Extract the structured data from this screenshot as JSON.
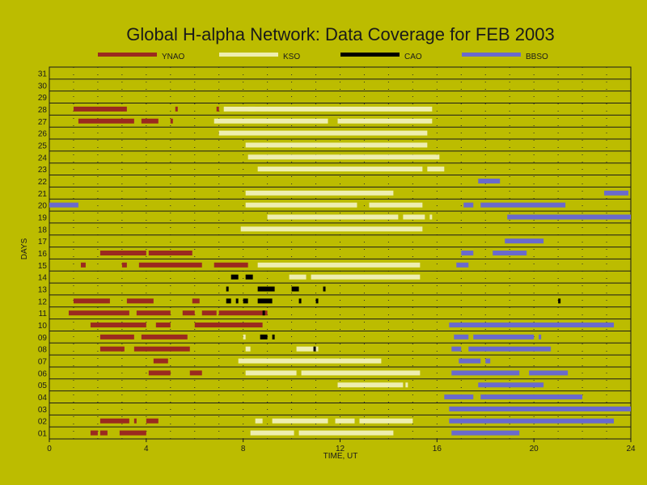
{
  "chart_data": {
    "type": "timeline",
    "title": "Global H-alpha Network: Data Coverage for FEB 2003",
    "xlabel": "TIME, UT",
    "ylabel": "DAYS",
    "xlim": [
      0,
      24
    ],
    "x_ticks": [
      0,
      4,
      8,
      12,
      16,
      20,
      24
    ],
    "days": [
      "01",
      "02",
      "03",
      "04",
      "05",
      "06",
      "07",
      "08",
      "09",
      "10",
      "11",
      "12",
      "13",
      "14",
      "15",
      "16",
      "17",
      "18",
      "19",
      "20",
      "21",
      "22",
      "23",
      "24",
      "25",
      "26",
      "27",
      "28",
      "29",
      "30",
      "31"
    ],
    "grid": "dotted vertical every 1 hour",
    "colors": {
      "background": "#bcbc00",
      "YNAO": "#9b2a1f",
      "KSO": "#eeeeb0",
      "CAO": "#000000",
      "BBSO": "#6a6acc"
    },
    "series": [
      {
        "name": "YNAO",
        "intervals": [
          [
            1,
            1.7,
            2.0
          ],
          [
            1,
            2.1,
            2.4
          ],
          [
            1,
            2.9,
            4.0
          ],
          [
            2,
            2.1,
            3.3
          ],
          [
            2,
            3.5,
            3.6
          ],
          [
            2,
            4.0,
            4.5
          ],
          [
            6,
            4.1,
            5.0
          ],
          [
            6,
            5.8,
            6.3
          ],
          [
            7,
            4.3,
            4.9
          ],
          [
            8,
            2.1,
            3.1
          ],
          [
            8,
            3.5,
            5.8
          ],
          [
            9,
            2.1,
            3.5
          ],
          [
            9,
            3.8,
            5.7
          ],
          [
            10,
            1.7,
            4.0
          ],
          [
            10,
            4.4,
            5.0
          ],
          [
            10,
            6.0,
            8.8
          ],
          [
            11,
            0.8,
            3.3
          ],
          [
            11,
            3.6,
            5.0
          ],
          [
            11,
            5.5,
            6.0
          ],
          [
            11,
            6.3,
            6.9
          ],
          [
            11,
            7.0,
            9.0
          ],
          [
            12,
            1.0,
            2.5
          ],
          [
            12,
            3.2,
            4.3
          ],
          [
            12,
            5.9,
            6.2
          ],
          [
            15,
            1.3,
            1.5
          ],
          [
            15,
            3.0,
            3.2
          ],
          [
            15,
            3.7,
            6.3
          ],
          [
            15,
            6.8,
            8.2
          ],
          [
            16,
            2.1,
            4.0
          ],
          [
            16,
            4.1,
            5.9
          ],
          [
            27,
            1.2,
            3.5
          ],
          [
            27,
            3.8,
            4.5
          ],
          [
            27,
            5.0,
            5.1
          ],
          [
            28,
            1.0,
            3.2
          ],
          [
            28,
            5.2,
            5.3
          ],
          [
            28,
            6.9,
            7.0
          ],
          [
            28,
            7.3,
            8.2
          ],
          [
            28,
            8.5,
            8.7
          ]
        ]
      },
      {
        "name": "KSO",
        "intervals": [
          [
            1,
            8.3,
            10.1
          ],
          [
            1,
            10.3,
            14.2
          ],
          [
            2,
            8.5,
            8.8
          ],
          [
            2,
            9.2,
            11.5
          ],
          [
            2,
            11.8,
            12.6
          ],
          [
            2,
            12.8,
            15.0
          ],
          [
            5,
            11.9,
            14.6
          ],
          [
            5,
            14.7,
            14.8
          ],
          [
            6,
            8.1,
            10.2
          ],
          [
            6,
            10.4,
            15.3
          ],
          [
            7,
            7.8,
            13.7
          ],
          [
            8,
            8.1,
            8.3
          ],
          [
            8,
            10.2,
            11.1
          ],
          [
            9,
            8.0,
            8.1
          ],
          [
            14,
            9.9,
            10.6
          ],
          [
            14,
            10.8,
            15.3
          ],
          [
            15,
            8.6,
            15.3
          ],
          [
            18,
            7.9,
            15.4
          ],
          [
            19,
            9.0,
            14.4
          ],
          [
            19,
            14.6,
            15.5
          ],
          [
            19,
            15.7,
            15.8
          ],
          [
            20,
            8.1,
            12.7
          ],
          [
            20,
            13.2,
            15.4
          ],
          [
            21,
            8.1,
            14.2
          ],
          [
            23,
            8.6,
            15.4
          ],
          [
            23,
            15.6,
            16.3
          ],
          [
            24,
            8.2,
            16.1
          ],
          [
            25,
            8.1,
            15.6
          ],
          [
            26,
            7.0,
            15.6
          ],
          [
            27,
            6.8,
            11.5
          ],
          [
            27,
            11.9,
            15.8
          ],
          [
            28,
            7.2,
            15.8
          ]
        ]
      },
      {
        "name": "CAO",
        "intervals": [
          [
            8,
            10.9,
            11.0
          ],
          [
            9,
            8.7,
            9.0
          ],
          [
            9,
            9.2,
            9.3
          ],
          [
            11,
            8.8,
            8.9
          ],
          [
            12,
            7.3,
            7.5
          ],
          [
            12,
            7.7,
            7.8
          ],
          [
            12,
            8.0,
            8.2
          ],
          [
            12,
            8.6,
            9.2
          ],
          [
            12,
            10.3,
            10.4
          ],
          [
            12,
            11.0,
            11.1
          ],
          [
            12,
            21.0,
            21.1
          ],
          [
            13,
            7.3,
            7.4
          ],
          [
            13,
            8.6,
            9.3
          ],
          [
            13,
            10.0,
            10.3
          ],
          [
            13,
            11.3,
            11.4
          ],
          [
            14,
            7.5,
            7.8
          ],
          [
            14,
            8.1,
            8.4
          ]
        ]
      },
      {
        "name": "BBSO",
        "intervals": [
          [
            1,
            16.6,
            19.4
          ],
          [
            2,
            16.5,
            23.3
          ],
          [
            3,
            16.5,
            24.0
          ],
          [
            4,
            16.3,
            17.5
          ],
          [
            4,
            17.8,
            22.0
          ],
          [
            5,
            17.7,
            20.4
          ],
          [
            6,
            16.6,
            19.4
          ],
          [
            6,
            19.8,
            21.4
          ],
          [
            7,
            16.9,
            17.8
          ],
          [
            7,
            18.0,
            18.2
          ],
          [
            8,
            16.6,
            17.0
          ],
          [
            8,
            17.3,
            20.7
          ],
          [
            9,
            16.7,
            17.3
          ],
          [
            9,
            17.5,
            20.0
          ],
          [
            9,
            20.2,
            20.3
          ],
          [
            10,
            16.5,
            23.3
          ],
          [
            15,
            16.8,
            17.3
          ],
          [
            16,
            17.0,
            17.5
          ],
          [
            16,
            18.3,
            19.7
          ],
          [
            17,
            18.8,
            20.4
          ],
          [
            19,
            18.9,
            24.0
          ],
          [
            20,
            0.0,
            1.2
          ],
          [
            20,
            17.1,
            17.5
          ],
          [
            20,
            17.8,
            21.3
          ],
          [
            21,
            22.9,
            23.9
          ],
          [
            22,
            17.7,
            18.6
          ]
        ]
      }
    ]
  }
}
